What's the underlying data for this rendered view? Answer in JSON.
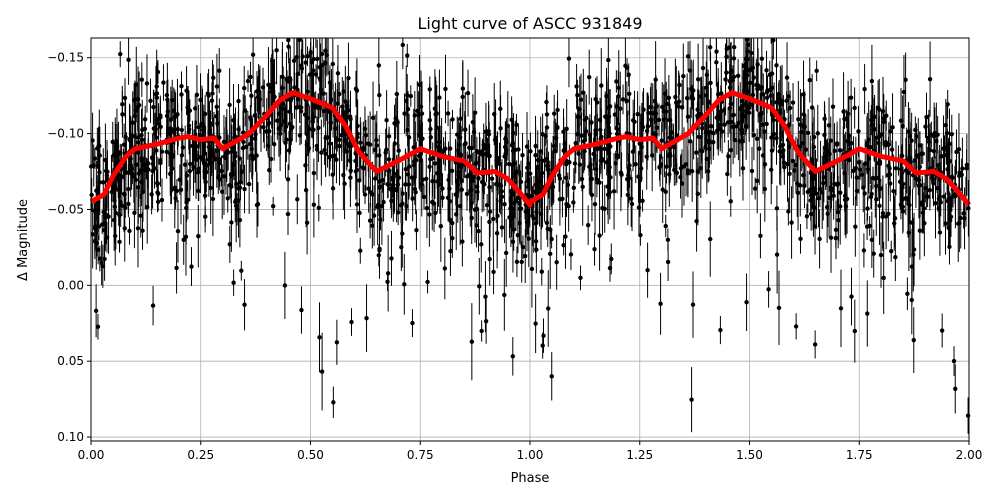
{
  "chart_data": {
    "type": "scatter",
    "title": "Light curve of ASCC 931849",
    "xlabel": "Phase",
    "ylabel": "Δ Magnitude",
    "xlim": [
      0,
      2
    ],
    "ylim": [
      0.1026,
      -0.163
    ],
    "y_inverted": true,
    "grid": true,
    "x_ticks": [
      0,
      0.25,
      0.5,
      0.75,
      1.0,
      1.25,
      1.5,
      1.75,
      2.0
    ],
    "x_tick_labels": [
      "0.00",
      "0.25",
      "0.50",
      "0.75",
      "1.00",
      "1.25",
      "1.50",
      "1.75",
      "2.00"
    ],
    "y_ticks": [
      -0.15,
      -0.1,
      -0.05,
      0.0,
      0.05,
      0.1
    ],
    "y_tick_labels": [
      "−0.15",
      "−0.10",
      "−0.05",
      "0.00",
      "0.05",
      "0.10"
    ],
    "series": [
      {
        "kind": "points-with-errorbars",
        "color": "#000000",
        "description_of_spread": "dense observations scattered roughly between -0.16 and 0.10 around the binned curve, repeated over two phase cycles"
      },
      {
        "kind": "binned-line",
        "color": "#ff0000",
        "x": [
          0.0,
          0.03,
          0.05,
          0.08,
          0.1,
          0.15,
          0.2,
          0.22,
          0.25,
          0.28,
          0.3,
          0.33,
          0.36,
          0.4,
          0.43,
          0.46,
          0.5,
          0.55,
          0.58,
          0.61,
          0.65,
          0.7,
          0.75,
          0.8,
          0.85,
          0.88,
          0.92,
          0.95,
          0.98,
          1.0
        ],
        "y": [
          -0.055,
          -0.06,
          -0.072,
          -0.085,
          -0.09,
          -0.093,
          -0.097,
          -0.098,
          -0.096,
          -0.097,
          -0.09,
          -0.095,
          -0.1,
          -0.112,
          -0.122,
          -0.127,
          -0.123,
          -0.117,
          -0.105,
          -0.088,
          -0.075,
          -0.082,
          -0.09,
          -0.085,
          -0.082,
          -0.074,
          -0.075,
          -0.07,
          -0.06,
          -0.053
        ],
        "repeats_each_phase_cycle": true
      }
    ]
  }
}
